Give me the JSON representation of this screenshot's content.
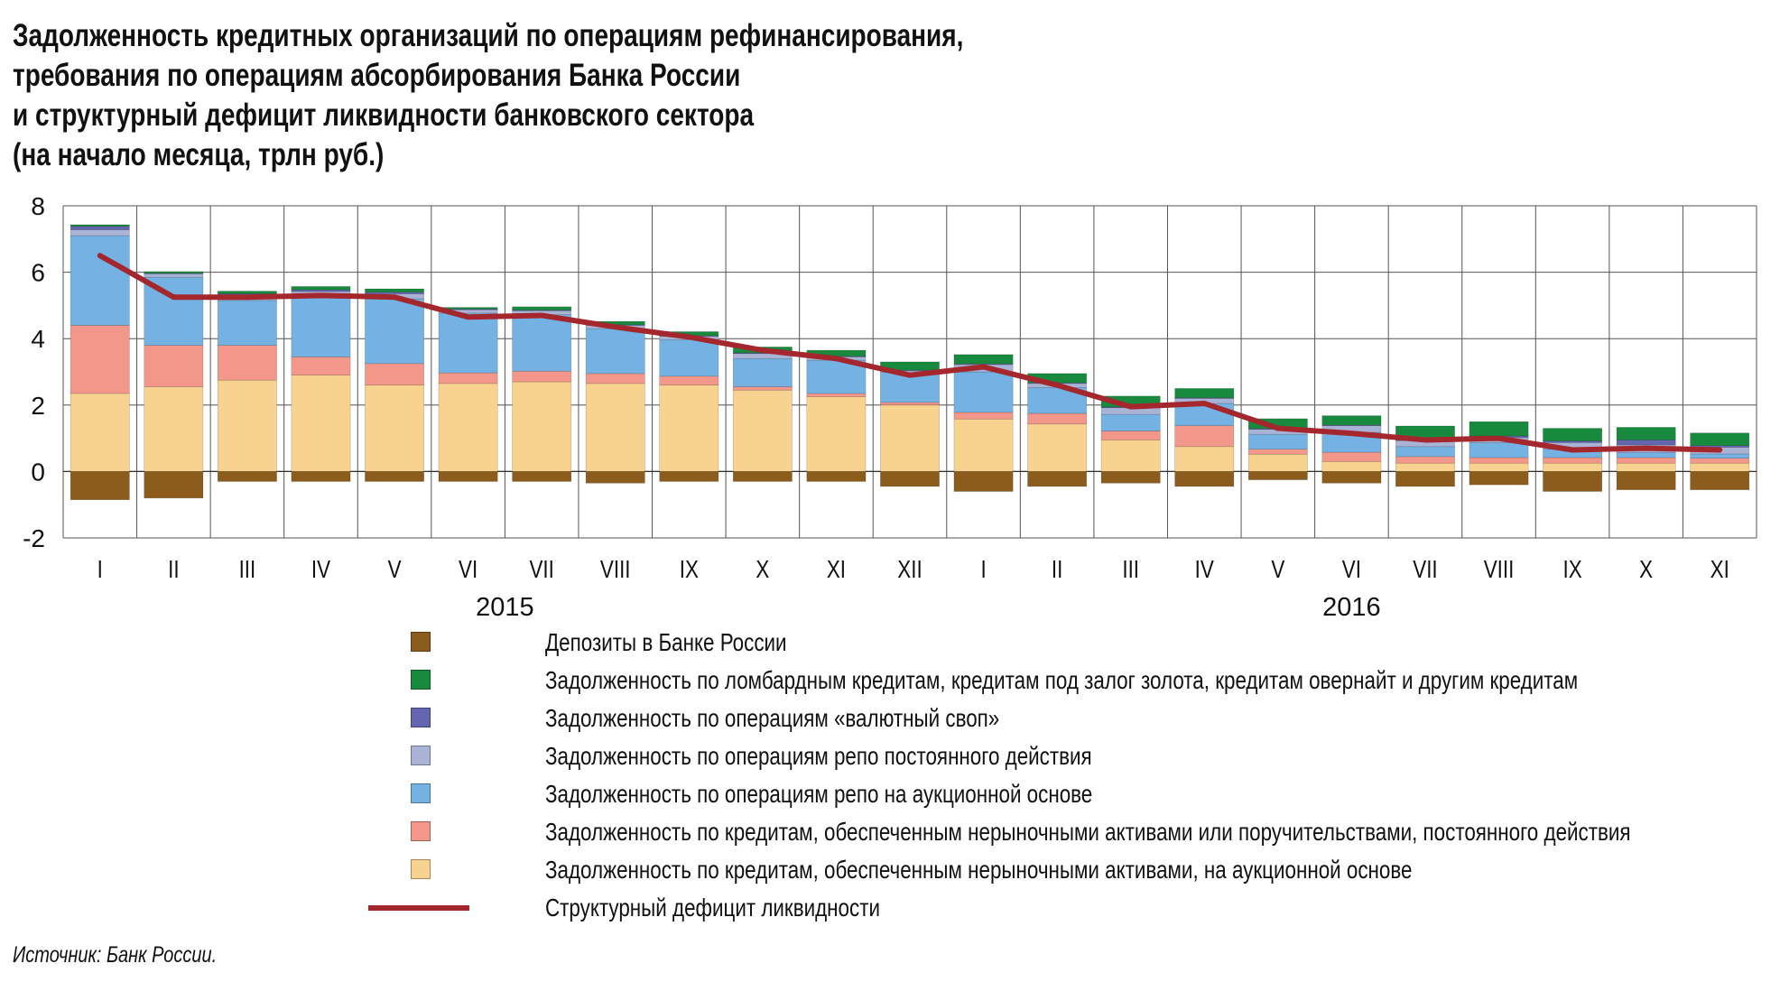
{
  "title_lines": [
    "Задолженность кредитных организаций по операциям рефинансирования,",
    "требования по операциям абсорбирования Банка России",
    "и структурный дефицит ликвидности банковского сектора",
    "(на начало месяца, трлн руб.)"
  ],
  "source": "Источник: Банк России.",
  "colors": {
    "deposits": "#8c5c1c",
    "lombard": "#178a3e",
    "fx_swap": "#6466b2",
    "repo_standing": "#a9b3d6",
    "repo_auction": "#74b2e3",
    "nonmarket_standing": "#f2978a",
    "nonmarket_auction": "#f7d38f",
    "deficit_line": "#a4272d",
    "grid": "#555555"
  },
  "chart_data": {
    "type": "bar",
    "stacked": true,
    "unit": "трлн руб.",
    "ylim": [
      -2,
      8
    ],
    "yticks": [
      "-2",
      "0",
      "2",
      "4",
      "6",
      "8"
    ],
    "grid": true,
    "categories": [
      "I",
      "II",
      "III",
      "IV",
      "V",
      "VI",
      "VII",
      "VIII",
      "IX",
      "X",
      "XI",
      "XII",
      "I",
      "II",
      "III",
      "IV",
      "V",
      "VI",
      "VII",
      "VIII",
      "IX",
      "X",
      "XI"
    ],
    "year_labels": [
      {
        "label": "2015",
        "center_index": 5.5
      },
      {
        "label": "2016",
        "center_index": 17
      }
    ],
    "series": [
      {
        "key": "nonmarket_auction",
        "name": "Задолженность по кредитам, обеспеченным нерыночными активами, на аукционной основе",
        "values": [
          2.35,
          2.55,
          2.75,
          2.9,
          2.6,
          2.65,
          2.7,
          2.65,
          2.6,
          2.45,
          2.25,
          2.0,
          1.58,
          1.43,
          0.95,
          0.75,
          0.52,
          0.3,
          0.25,
          0.25,
          0.25,
          0.25,
          0.25
        ]
      },
      {
        "key": "nonmarket_standing",
        "name": "Задолженность по кредитам, обеспеченным нерыночными активами или поручительствами, постоянного действия",
        "values": [
          2.05,
          1.25,
          1.05,
          0.55,
          0.65,
          0.32,
          0.32,
          0.3,
          0.27,
          0.1,
          0.1,
          0.08,
          0.2,
          0.32,
          0.27,
          0.63,
          0.15,
          0.28,
          0.2,
          0.17,
          0.17,
          0.17,
          0.15
        ]
      },
      {
        "key": "repo_auction",
        "name": "Задолженность по операциям репо на аукционной основе",
        "values": [
          2.7,
          2.05,
          1.35,
          1.85,
          1.95,
          1.8,
          1.7,
          1.35,
          1.1,
          0.85,
          1.0,
          0.9,
          1.22,
          0.78,
          0.5,
          0.67,
          0.45,
          0.6,
          0.3,
          0.45,
          0.25,
          0.15,
          0.13
        ]
      },
      {
        "key": "repo_standing",
        "name": "Задолженность по операциям репо постоянного действия",
        "values": [
          0.18,
          0.1,
          0.15,
          0.12,
          0.15,
          0.1,
          0.12,
          0.1,
          0.1,
          0.15,
          0.1,
          0.05,
          0.22,
          0.12,
          0.2,
          0.15,
          0.15,
          0.2,
          0.18,
          0.15,
          0.2,
          0.23,
          0.2
        ]
      },
      {
        "key": "fx_swap",
        "name": "Задолженность по операциям «валютный своп»",
        "values": [
          0.1,
          0.02,
          0.05,
          0.05,
          0.05,
          0.02,
          0.02,
          0.02,
          0.02,
          0.02,
          0.02,
          0.02,
          0.02,
          0.02,
          0.02,
          0.02,
          0.02,
          0.02,
          0.02,
          0.05,
          0.05,
          0.15,
          0.05
        ]
      },
      {
        "key": "lombard",
        "name": "Задолженность по ломбардным кредитам, кредитам под залог золота, кредитам овернайт и другим кредитам",
        "values": [
          0.05,
          0.05,
          0.08,
          0.1,
          0.1,
          0.05,
          0.1,
          0.1,
          0.12,
          0.18,
          0.18,
          0.25,
          0.28,
          0.28,
          0.33,
          0.28,
          0.3,
          0.28,
          0.42,
          0.43,
          0.38,
          0.38,
          0.38
        ]
      },
      {
        "key": "deposits",
        "name": "Депозиты в Банке России",
        "values": [
          -0.85,
          -0.8,
          -0.3,
          -0.3,
          -0.3,
          -0.3,
          -0.3,
          -0.35,
          -0.3,
          -0.3,
          -0.3,
          -0.45,
          -0.6,
          -0.45,
          -0.35,
          -0.45,
          -0.25,
          -0.35,
          -0.45,
          -0.4,
          -0.6,
          -0.55,
          -0.55
        ]
      }
    ],
    "line": {
      "key": "deficit_line",
      "name": "Структурный дефицит ликвидности",
      "values": [
        6.5,
        5.25,
        5.25,
        5.3,
        5.25,
        4.65,
        4.7,
        4.35,
        4.05,
        3.65,
        3.4,
        2.9,
        3.15,
        2.6,
        1.95,
        2.05,
        1.3,
        1.15,
        0.95,
        1.0,
        0.65,
        0.7,
        0.65
      ]
    }
  },
  "legend": [
    {
      "key": "deposits",
      "label": "Депозиты в Банке России"
    },
    {
      "key": "lombard",
      "label": "Задолженность по ломбардным кредитам, кредитам под залог золота, кредитам овернайт и другим кредитам"
    },
    {
      "key": "fx_swap",
      "label": "Задолженность по операциям «валютный своп»"
    },
    {
      "key": "repo_standing",
      "label": "Задолженность по операциям репо постоянного действия"
    },
    {
      "key": "repo_auction",
      "label": "Задолженность по операциям репо на аукционной основе"
    },
    {
      "key": "nonmarket_standing",
      "label": "Задолженность по кредитам, обеспеченным нерыночными активами или поручительствами, постоянного действия"
    },
    {
      "key": "nonmarket_auction",
      "label": "Задолженность по кредитам, обеспеченным нерыночными активами, на аукционной основе"
    },
    {
      "key": "deficit_line",
      "label": "Структурный дефицит ликвидности",
      "is_line": true
    }
  ]
}
